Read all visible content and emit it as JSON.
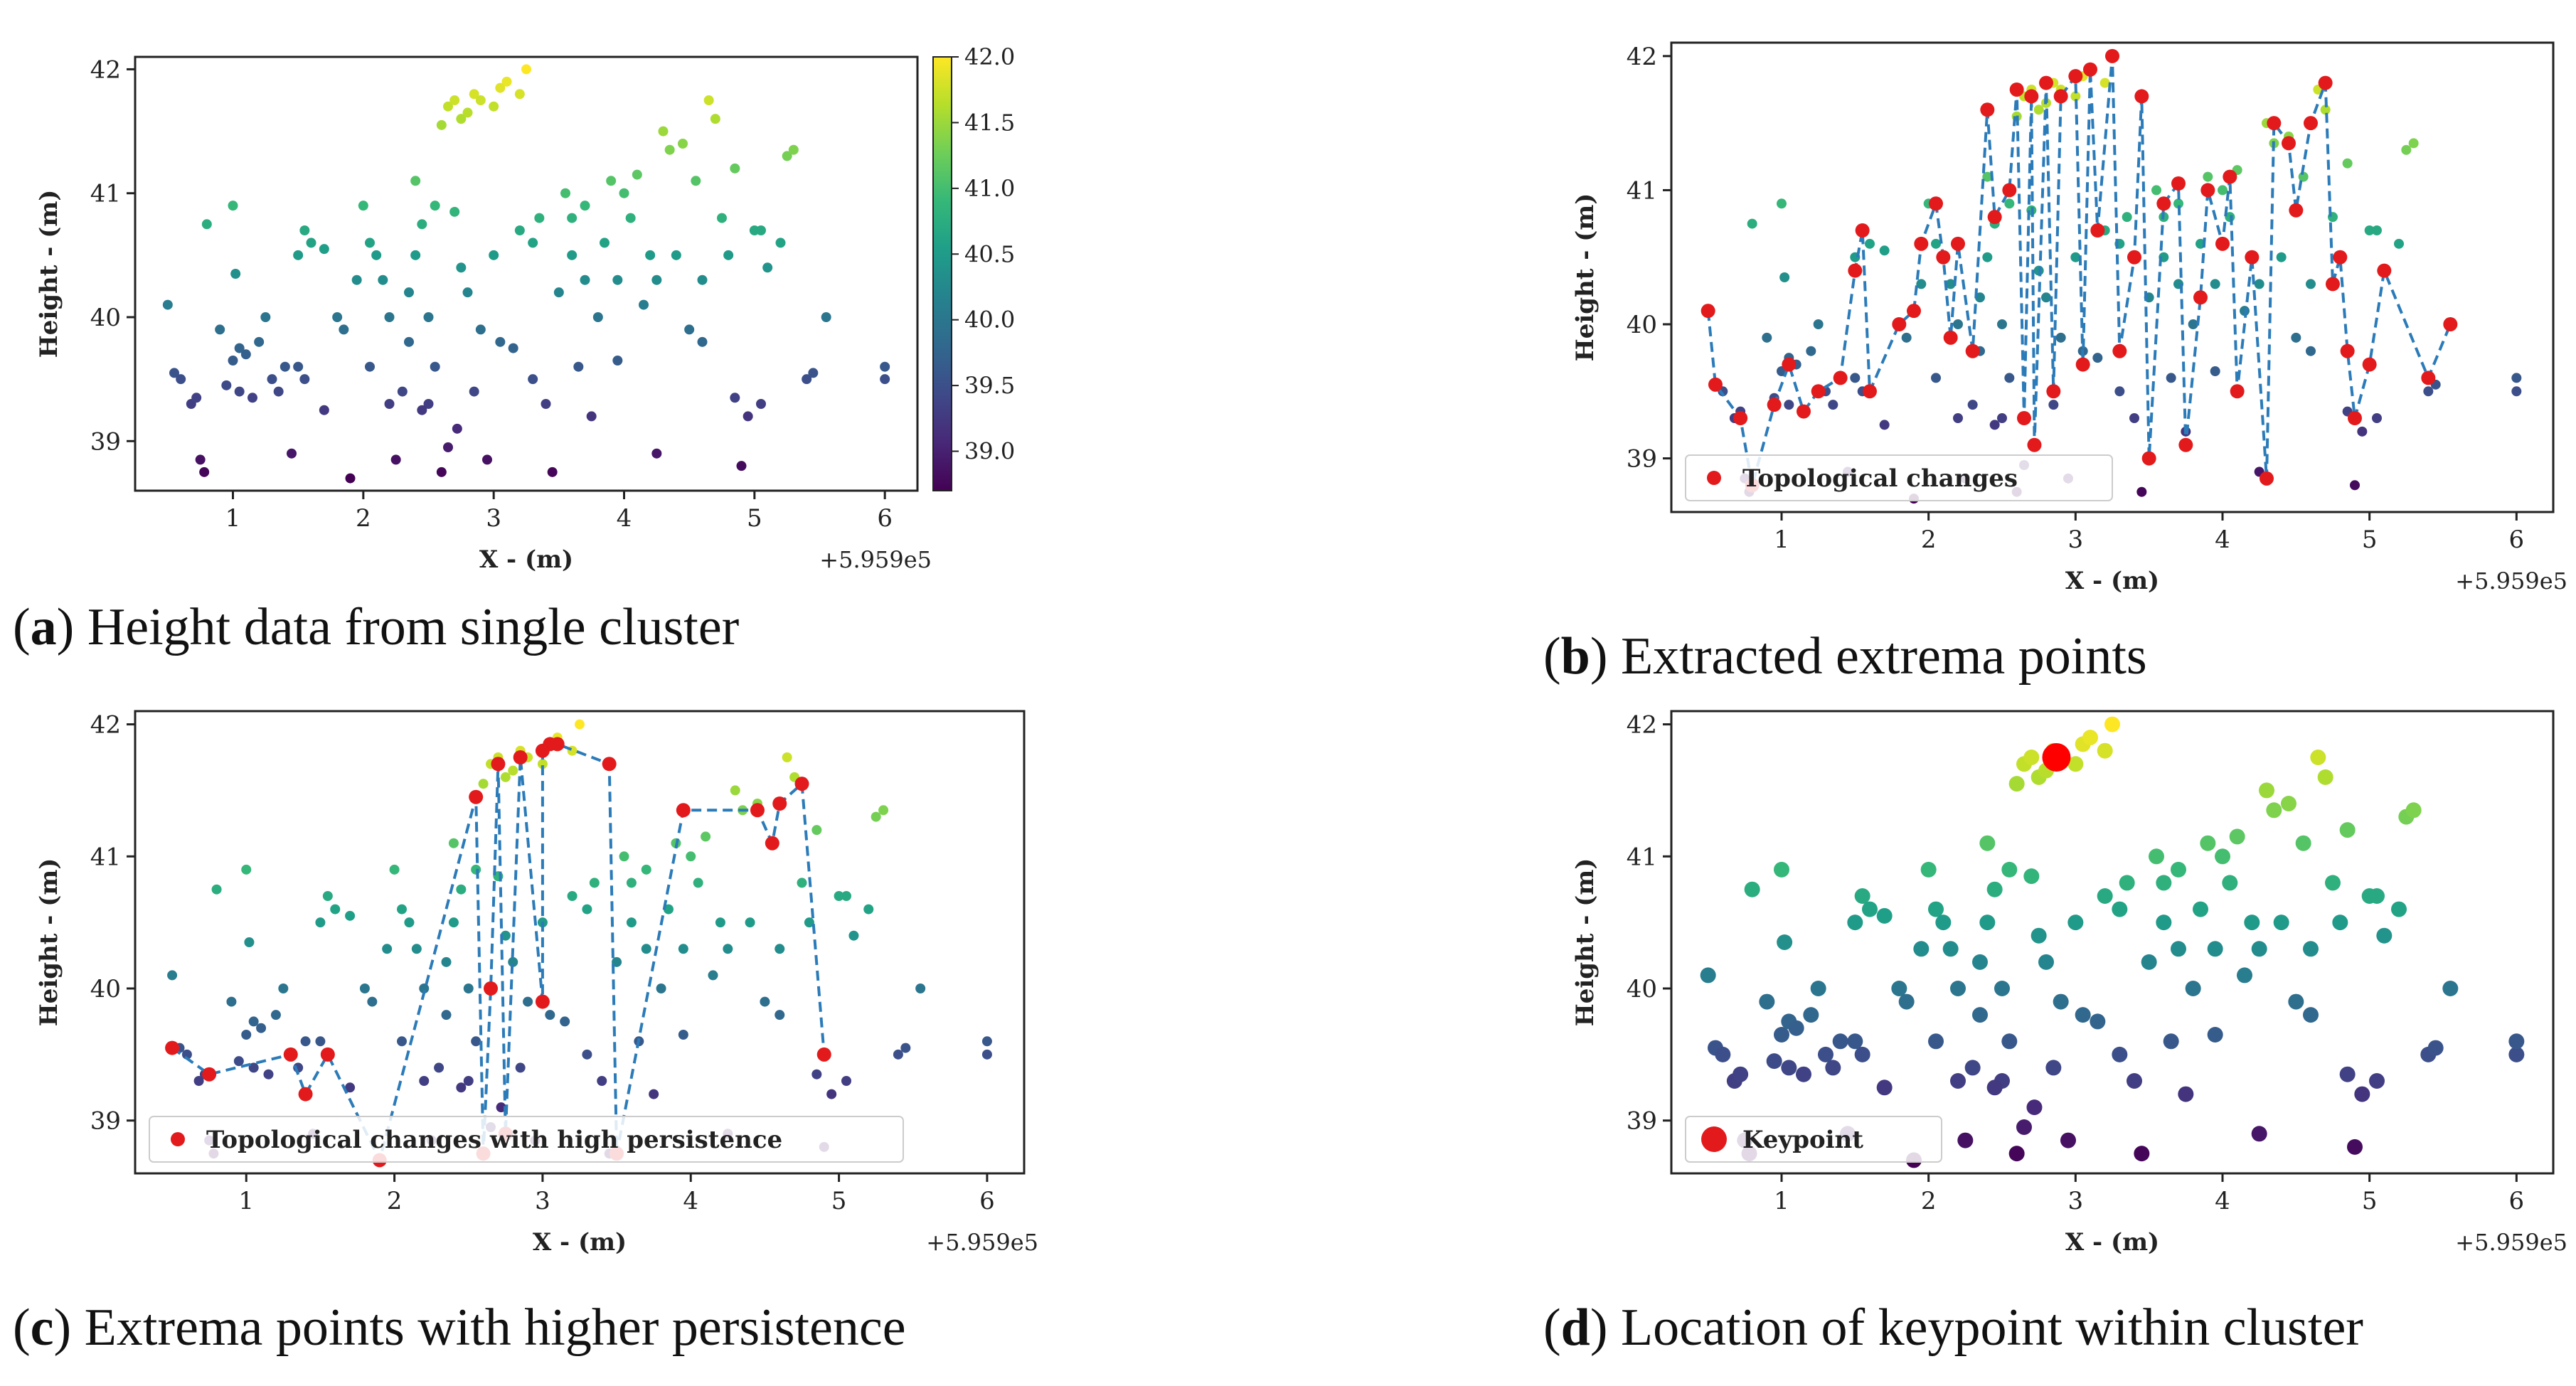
{
  "figure": {
    "captions": [
      {
        "letter": "a",
        "text": "Height data from single cluster"
      },
      {
        "letter": "b",
        "text": "Extracted extrema points"
      },
      {
        "letter": "c",
        "text": "Extrema points with higher persistence"
      },
      {
        "letter": "d",
        "text": "Location of keypoint within cluster"
      }
    ]
  },
  "chart_data": [
    {
      "id": "a",
      "type": "scatter",
      "title": "",
      "xlabel": "X - (m)",
      "ylabel": "Height - (m)",
      "offset_label": "+5.959e5",
      "xlim": [
        0.25,
        6.25
      ],
      "ylim": [
        38.6,
        42.1
      ],
      "xticks": [
        1,
        2,
        3,
        4,
        5,
        6
      ],
      "yticks": [
        39,
        40,
        41,
        42
      ],
      "colorbar": {
        "ticks": [
          39.0,
          39.5,
          40.0,
          40.5,
          41.0,
          41.5,
          42.0
        ],
        "range": [
          38.7,
          42.0
        ]
      },
      "legend": null,
      "points": [
        [
          0.5,
          40.1
        ],
        [
          0.55,
          39.55
        ],
        [
          0.6,
          39.5
        ],
        [
          0.68,
          39.3
        ],
        [
          0.72,
          39.35
        ],
        [
          0.75,
          38.85
        ],
        [
          0.78,
          38.75
        ],
        [
          0.8,
          40.75
        ],
        [
          0.9,
          39.9
        ],
        [
          0.95,
          39.45
        ],
        [
          1.0,
          40.9
        ],
        [
          1.0,
          39.65
        ],
        [
          1.05,
          39.75
        ],
        [
          1.02,
          40.35
        ],
        [
          1.05,
          39.4
        ],
        [
          1.1,
          39.7
        ],
        [
          1.15,
          39.35
        ],
        [
          1.2,
          39.8
        ],
        [
          1.25,
          40.0
        ],
        [
          1.3,
          39.5
        ],
        [
          1.35,
          39.4
        ],
        [
          1.4,
          39.6
        ],
        [
          1.45,
          38.9
        ],
        [
          1.5,
          39.6
        ],
        [
          1.5,
          40.5
        ],
        [
          1.55,
          40.7
        ],
        [
          1.6,
          40.6
        ],
        [
          1.7,
          39.25
        ],
        [
          1.7,
          40.55
        ],
        [
          1.8,
          40.0
        ],
        [
          1.9,
          38.7
        ],
        [
          1.95,
          40.3
        ],
        [
          2.0,
          40.9
        ],
        [
          2.05,
          40.6
        ],
        [
          2.1,
          40.5
        ],
        [
          2.15,
          40.3
        ],
        [
          2.2,
          40.0
        ],
        [
          2.2,
          39.3
        ],
        [
          2.25,
          38.85
        ],
        [
          2.3,
          39.4
        ],
        [
          2.35,
          39.8
        ],
        [
          2.4,
          40.5
        ],
        [
          2.4,
          41.1
        ],
        [
          2.45,
          40.75
        ],
        [
          2.5,
          40.0
        ],
        [
          2.5,
          39.3
        ],
        [
          2.55,
          39.6
        ],
        [
          2.55,
          40.9
        ],
        [
          2.6,
          38.75
        ],
        [
          2.6,
          41.55
        ],
        [
          2.65,
          41.7
        ],
        [
          2.7,
          41.75
        ],
        [
          2.7,
          40.85
        ],
        [
          2.72,
          39.1
        ],
        [
          2.75,
          41.6
        ],
        [
          2.8,
          40.2
        ],
        [
          2.8,
          41.65
        ],
        [
          2.85,
          41.8
        ],
        [
          2.9,
          41.75
        ],
        [
          2.9,
          39.9
        ],
        [
          2.95,
          38.85
        ],
        [
          3.0,
          41.7
        ],
        [
          3.0,
          40.5
        ],
        [
          3.05,
          41.85
        ],
        [
          3.1,
          41.9
        ],
        [
          3.15,
          39.75
        ],
        [
          3.2,
          41.8
        ],
        [
          3.25,
          42.0
        ],
        [
          3.3,
          40.6
        ],
        [
          3.35,
          40.8
        ],
        [
          3.4,
          39.3
        ],
        [
          3.45,
          38.75
        ],
        [
          3.5,
          40.2
        ],
        [
          3.55,
          41.0
        ],
        [
          3.6,
          40.5
        ],
        [
          3.65,
          39.6
        ],
        [
          3.7,
          40.9
        ],
        [
          3.75,
          39.2
        ],
        [
          3.8,
          40.0
        ],
        [
          3.85,
          40.6
        ],
        [
          3.9,
          41.1
        ],
        [
          3.95,
          40.3
        ],
        [
          4.0,
          41.0
        ],
        [
          4.05,
          40.8
        ],
        [
          4.1,
          41.15
        ],
        [
          4.15,
          40.1
        ],
        [
          4.2,
          40.5
        ],
        [
          4.25,
          40.3
        ],
        [
          4.3,
          41.5
        ],
        [
          4.35,
          41.35
        ],
        [
          4.4,
          40.5
        ],
        [
          4.45,
          41.4
        ],
        [
          4.5,
          39.9
        ],
        [
          4.55,
          41.1
        ],
        [
          4.6,
          40.3
        ],
        [
          4.65,
          41.75
        ],
        [
          4.7,
          41.6
        ],
        [
          4.75,
          40.8
        ],
        [
          4.8,
          40.5
        ],
        [
          4.85,
          39.35
        ],
        [
          4.9,
          38.8
        ],
        [
          4.95,
          39.2
        ],
        [
          5.0,
          40.7
        ],
        [
          5.05,
          40.7
        ],
        [
          5.1,
          40.4
        ],
        [
          5.2,
          40.6
        ],
        [
          5.25,
          41.3
        ],
        [
          5.3,
          41.35
        ],
        [
          5.4,
          39.5
        ],
        [
          5.45,
          39.55
        ],
        [
          5.55,
          40.0
        ],
        [
          6.0,
          39.5
        ],
        [
          6.0,
          39.6
        ],
        [
          1.55,
          39.5
        ],
        [
          1.85,
          39.9
        ],
        [
          2.05,
          39.6
        ],
        [
          2.35,
          40.2
        ],
        [
          2.45,
          39.25
        ],
        [
          2.65,
          38.95
        ],
        [
          2.75,
          40.4
        ],
        [
          2.85,
          39.4
        ],
        [
          3.05,
          39.8
        ],
        [
          3.2,
          40.7
        ],
        [
          3.3,
          39.5
        ],
        [
          3.6,
          40.8
        ],
        [
          3.7,
          40.3
        ],
        [
          3.95,
          39.65
        ],
        [
          4.25,
          38.9
        ],
        [
          4.6,
          39.8
        ],
        [
          4.85,
          41.2
        ],
        [
          5.05,
          39.3
        ]
      ]
    },
    {
      "id": "b",
      "type": "scatter",
      "title": "",
      "xlabel": "X - (m)",
      "ylabel": "Height - (m)",
      "offset_label": "+5.959e5",
      "xlim": [
        0.25,
        6.25
      ],
      "ylim": [
        38.6,
        42.1
      ],
      "xticks": [
        1,
        2,
        3,
        4,
        5,
        6
      ],
      "yticks": [
        39,
        40,
        41,
        42
      ],
      "legend": {
        "label": "Topological changes",
        "placement": "lower-left"
      },
      "extrema": [
        [
          0.5,
          40.1
        ],
        [
          0.55,
          39.55
        ],
        [
          0.72,
          39.3
        ],
        [
          0.8,
          38.8
        ],
        [
          0.95,
          39.4
        ],
        [
          1.05,
          39.7
        ],
        [
          1.15,
          39.35
        ],
        [
          1.25,
          39.5
        ],
        [
          1.4,
          39.6
        ],
        [
          1.5,
          40.4
        ],
        [
          1.55,
          40.7
        ],
        [
          1.6,
          39.5
        ],
        [
          1.8,
          40.0
        ],
        [
          1.9,
          40.1
        ],
        [
          1.95,
          40.6
        ],
        [
          2.05,
          40.9
        ],
        [
          2.1,
          40.5
        ],
        [
          2.15,
          39.9
        ],
        [
          2.2,
          40.6
        ],
        [
          2.3,
          39.8
        ],
        [
          2.4,
          41.6
        ],
        [
          2.45,
          40.8
        ],
        [
          2.55,
          41.0
        ],
        [
          2.6,
          41.75
        ],
        [
          2.65,
          39.3
        ],
        [
          2.7,
          41.7
        ],
        [
          2.72,
          39.1
        ],
        [
          2.8,
          41.8
        ],
        [
          2.85,
          39.5
        ],
        [
          2.9,
          41.7
        ],
        [
          3.0,
          41.85
        ],
        [
          3.05,
          39.7
        ],
        [
          3.1,
          41.9
        ],
        [
          3.15,
          40.7
        ],
        [
          3.25,
          42.0
        ],
        [
          3.3,
          39.8
        ],
        [
          3.4,
          40.5
        ],
        [
          3.45,
          41.7
        ],
        [
          3.5,
          39.0
        ],
        [
          3.6,
          40.9
        ],
        [
          3.7,
          41.05
        ],
        [
          3.75,
          39.1
        ],
        [
          3.85,
          40.2
        ],
        [
          3.9,
          41.0
        ],
        [
          4.0,
          40.6
        ],
        [
          4.05,
          41.1
        ],
        [
          4.1,
          39.5
        ],
        [
          4.2,
          40.5
        ],
        [
          4.3,
          38.85
        ],
        [
          4.35,
          41.5
        ],
        [
          4.45,
          41.35
        ],
        [
          4.5,
          40.85
        ],
        [
          4.6,
          41.5
        ],
        [
          4.7,
          41.8
        ],
        [
          4.75,
          40.3
        ],
        [
          4.8,
          40.5
        ],
        [
          4.85,
          39.8
        ],
        [
          4.9,
          39.3
        ],
        [
          5.0,
          39.7
        ],
        [
          5.1,
          40.4
        ],
        [
          5.4,
          39.6
        ],
        [
          5.55,
          40.0
        ]
      ]
    },
    {
      "id": "c",
      "type": "scatter",
      "title": "",
      "xlabel": "X - (m)",
      "ylabel": "Height - (m)",
      "offset_label": "+5.959e5",
      "xlim": [
        0.25,
        6.25
      ],
      "ylim": [
        38.6,
        42.1
      ],
      "xticks": [
        1,
        2,
        3,
        4,
        5,
        6
      ],
      "yticks": [
        39,
        40,
        41,
        42
      ],
      "legend": {
        "label": "Topological changes with high persistence",
        "placement": "lower-left"
      },
      "extrema": [
        [
          0.5,
          39.55
        ],
        [
          0.75,
          39.35
        ],
        [
          1.3,
          39.5
        ],
        [
          1.4,
          39.2
        ],
        [
          1.55,
          39.5
        ],
        [
          1.9,
          38.7
        ],
        [
          2.55,
          41.45
        ],
        [
          2.6,
          38.75
        ],
        [
          2.65,
          40.0
        ],
        [
          2.7,
          41.7
        ],
        [
          2.75,
          38.9
        ],
        [
          2.85,
          41.75
        ],
        [
          3.0,
          39.9
        ],
        [
          3.0,
          41.8
        ],
        [
          3.05,
          41.85
        ],
        [
          3.1,
          41.85
        ],
        [
          3.45,
          41.7
        ],
        [
          3.5,
          38.75
        ],
        [
          3.95,
          41.35
        ],
        [
          4.45,
          41.35
        ],
        [
          4.55,
          41.1
        ],
        [
          4.6,
          41.4
        ],
        [
          4.75,
          41.55
        ],
        [
          4.9,
          39.5
        ]
      ]
    },
    {
      "id": "d",
      "type": "scatter",
      "title": "",
      "xlabel": "X - (m)",
      "ylabel": "Height - (m)",
      "offset_label": "+5.959e5",
      "xlim": [
        0.25,
        6.25
      ],
      "ylim": [
        38.6,
        42.1
      ],
      "xticks": [
        1,
        2,
        3,
        4,
        5,
        6
      ],
      "yticks": [
        39,
        40,
        41,
        42
      ],
      "legend": {
        "label": "Keypoint",
        "placement": "lower-left"
      },
      "keypoint": [
        2.87,
        41.75
      ]
    }
  ]
}
